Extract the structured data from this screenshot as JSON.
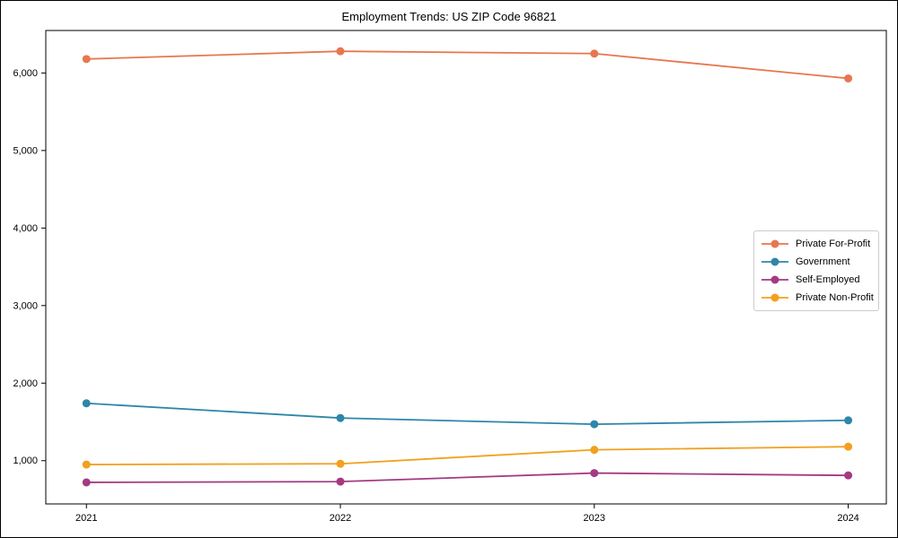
{
  "figure": {
    "title": "Employment Trends: US ZIP Code 96821"
  },
  "chart_data": {
    "type": "line",
    "title": "Employment Trends: US ZIP Code 96821",
    "xlabel": "",
    "ylabel": "",
    "x": [
      2021,
      2022,
      2023,
      2024
    ],
    "x_tick_labels": [
      "2021",
      "2022",
      "2023",
      "2024"
    ],
    "y_tick_values": [
      1000,
      2000,
      3000,
      4000,
      5000,
      6000
    ],
    "y_tick_labels": [
      "1,000",
      "2,000",
      "3,000",
      "4,000",
      "5,000",
      "6,000"
    ],
    "xlim": [
      2020.84,
      2024.15
    ],
    "ylim": [
      442,
      6548
    ],
    "grid": false,
    "legend_position": "right-middle",
    "marker": "circle",
    "series": [
      {
        "name": "Private For-Profit",
        "color": "#e8764e",
        "values": [
          6180,
          6280,
          6250,
          5930
        ]
      },
      {
        "name": "Government",
        "color": "#2e86a8",
        "values": [
          1740,
          1550,
          1470,
          1520
        ]
      },
      {
        "name": "Self-Employed",
        "color": "#a33a82",
        "values": [
          720,
          730,
          840,
          810
        ]
      },
      {
        "name": "Private Non-Profit",
        "color": "#f2a01d",
        "values": [
          950,
          960,
          1140,
          1180
        ]
      }
    ]
  }
}
